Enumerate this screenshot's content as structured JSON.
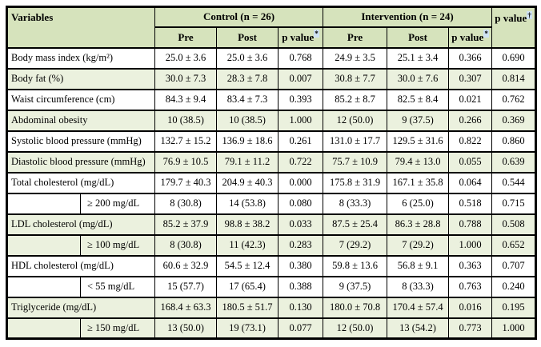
{
  "colors": {
    "header_green": "#d6e3bc",
    "row_green": "#ebf1de",
    "row_white": "#ffffff",
    "border_black": "#000000",
    "field_highlight": "#cfe2f3"
  },
  "table": {
    "header": {
      "variables_label": "Variables",
      "control_label": "Control (n = 26)",
      "intervention_label": "Intervention (n = 24)",
      "pre_label": "Pre",
      "post_label": "Post",
      "p_within_label": "p value",
      "p_within_sup": "*",
      "p_between_label": "p value",
      "p_between_sup": "†"
    },
    "rows": [
      {
        "label": "Body mass index (kg/m²)",
        "sub": false,
        "shaded": false,
        "cells": [
          "25.0 ± 3.6",
          "25.0 ± 3.6",
          "0.768",
          "24.9 ± 3.5",
          "25.1 ± 3.4",
          "0.366",
          "0.690"
        ]
      },
      {
        "label": "Body fat (%)",
        "sub": false,
        "shaded": true,
        "cells": [
          "30.0 ± 7.3",
          "28.3 ± 7.8",
          "0.007",
          "30.8 ± 7.7",
          "30.0 ± 7.6",
          "0.307",
          "0.814"
        ]
      },
      {
        "label": "Waist circumference (cm)",
        "sub": false,
        "shaded": false,
        "cells": [
          "84.3 ± 9.4",
          "83.4 ± 7.3",
          "0.393",
          "85.2 ± 8.7",
          "82.5 ± 8.4",
          "0.021",
          "0.762"
        ]
      },
      {
        "label": "Abdominal obesity",
        "sub": false,
        "shaded": true,
        "cells": [
          "10 (38.5)",
          "10 (38.5)",
          "1.000",
          "12 (50.0)",
          "9 (37.5)",
          "0.266",
          "0.369"
        ]
      },
      {
        "label": "Systolic blood pressure (mmHg)",
        "sub": false,
        "shaded": false,
        "cells": [
          "132.7 ± 15.2",
          "136.9 ± 18.6",
          "0.261",
          "131.0 ± 17.7",
          "129.5 ± 31.6",
          "0.822",
          "0.860"
        ]
      },
      {
        "label": "Diastolic blood pressure (mmHg)",
        "sub": false,
        "shaded": true,
        "cells": [
          "76.9 ± 10.5",
          "79.1 ± 11.2",
          "0.722",
          "75.7 ± 10.9",
          "79.4 ± 13.0",
          "0.055",
          "0.639"
        ]
      },
      {
        "label": "Total cholesterol (mg/dL)",
        "sub": false,
        "shaded": false,
        "cells": [
          "179.7 ± 40.3",
          "204.9 ± 40.3",
          "0.000",
          "175.8 ± 31.9",
          "167.1 ± 35.8",
          "0.064",
          "0.544"
        ]
      },
      {
        "label": "≥ 200 mg/dL",
        "sub": true,
        "shaded": false,
        "cells": [
          "8 (30.8)",
          "14 (53.8)",
          "0.080",
          "8 (33.3)",
          "6 (25.0)",
          "0.518",
          "0.715"
        ]
      },
      {
        "label": "LDL cholesterol (mg/dL)",
        "sub": false,
        "shaded": true,
        "cells": [
          "85.2 ± 37.9",
          "98.8 ± 38.2",
          "0.033",
          "87.5 ± 25.4",
          "86.3 ± 28.8",
          "0.788",
          "0.508"
        ]
      },
      {
        "label": "≥ 100 mg/dL",
        "sub": true,
        "shaded": true,
        "cells": [
          "8 (30.8)",
          "11 (42.3)",
          "0.283",
          "7 (29.2)",
          "7 (29.2)",
          "1.000",
          "0.652"
        ]
      },
      {
        "label": "HDL cholesterol (mg/dL)",
        "sub": false,
        "shaded": false,
        "cells": [
          "60.6 ± 32.9",
          "54.5 ± 12.4",
          "0.380",
          "59.8 ± 13.6",
          "56.8 ± 9.1",
          "0.363",
          "0.707"
        ]
      },
      {
        "label": "< 55 mg/dL",
        "sub": true,
        "shaded": false,
        "cells": [
          "15 (57.7)",
          "17 (65.4)",
          "0.388",
          "9 (37.5)",
          "8 (33.3)",
          "0.763",
          "0.240"
        ]
      },
      {
        "label": "Triglyceride (mg/dL)",
        "sub": false,
        "shaded": true,
        "cells": [
          "168.4 ± 63.3",
          "180.5 ± 51.7",
          "0.130",
          "180.0 ± 70.8",
          "170.4 ± 57.4",
          "0.016",
          "0.195"
        ]
      },
      {
        "label": "≥ 150 mg/dL",
        "sub": true,
        "shaded": true,
        "cells": [
          "13 (50.0)",
          "19 (73.1)",
          "0.077",
          "12 (50.0)",
          "13 (54.2)",
          "0.773",
          "1.000"
        ]
      }
    ]
  }
}
